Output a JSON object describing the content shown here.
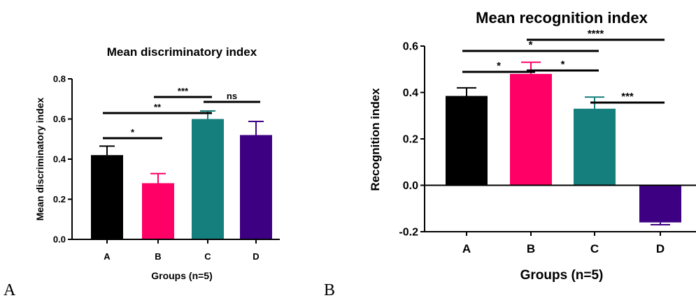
{
  "colors": {
    "A": "#000000",
    "B": "#ff0066",
    "C": "#157f7d",
    "D": "#3e0083",
    "axis": "#000000"
  },
  "panel_labels": [
    "A",
    "B"
  ],
  "chart_data": [
    {
      "type": "bar",
      "title": "Mean discriminatory index",
      "xlabel": "Groups (n=5)",
      "ylabel": "Mean discriminatory index",
      "categories": [
        "A",
        "B",
        "C",
        "D"
      ],
      "values": [
        0.42,
        0.28,
        0.6,
        0.52
      ],
      "errors": [
        0.045,
        0.048,
        0.04,
        0.068
      ],
      "ylim": [
        0,
        0.8
      ],
      "yticks": [
        "0.0",
        "0.2",
        "0.4",
        "0.6",
        "0.8"
      ],
      "grid": false,
      "significance": [
        {
          "from": "A",
          "to": "B",
          "label": "*"
        },
        {
          "from": "A",
          "to": "C",
          "label": "**"
        },
        {
          "from": "B",
          "to": "C",
          "label": "***"
        },
        {
          "from": "C",
          "to": "D",
          "label": "ns"
        }
      ]
    },
    {
      "type": "bar",
      "title": "Mean recognition index",
      "xlabel": "Groups (n=5)",
      "ylabel": "Recognition index",
      "categories": [
        "A",
        "B",
        "C",
        "D"
      ],
      "values": [
        0.385,
        0.48,
        0.33,
        -0.16
      ],
      "errors": [
        0.035,
        0.05,
        0.05,
        0.01
      ],
      "ylim": [
        -0.2,
        0.6
      ],
      "yticks": [
        "-0.2",
        "0.0",
        "0.2",
        "0.4",
        "0.6"
      ],
      "grid": false,
      "significance": [
        {
          "from": "A",
          "to": "B",
          "label": "*"
        },
        {
          "from": "A",
          "to": "C",
          "label": "*"
        },
        {
          "from": "B",
          "to": "C",
          "label": "*"
        },
        {
          "from": "B",
          "to": "D",
          "label": "****"
        },
        {
          "from": "C",
          "to": "D",
          "label": "***"
        }
      ]
    }
  ]
}
